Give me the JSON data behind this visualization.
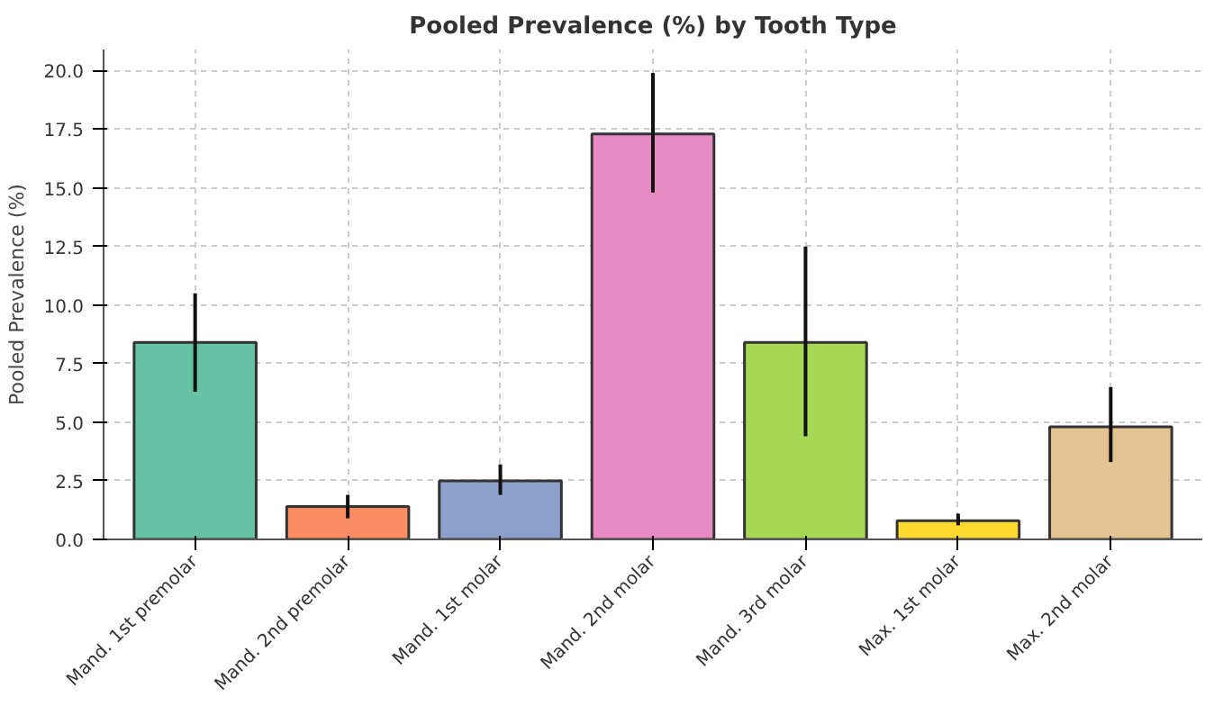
{
  "chart_data": {
    "type": "bar",
    "title": "Pooled Prevalence (%) by Tooth Type",
    "ylabel": "Pooled Prevalence (%)",
    "categories": [
      "Mand. 1st premolar",
      "Mand. 2nd premolar",
      "Mand. 1st molar",
      "Mand. 2nd molar",
      "Mand. 3rd molar",
      "Max. 1st molar",
      "Max. 2nd molar"
    ],
    "values": [
      8.4,
      1.4,
      2.5,
      17.3,
      8.4,
      0.8,
      4.8
    ],
    "errors": [
      [
        6.3,
        10.5
      ],
      [
        0.9,
        1.9
      ],
      [
        1.9,
        3.2
      ],
      [
        14.8,
        19.9
      ],
      [
        4.4,
        12.5
      ],
      [
        0.6,
        1.1
      ],
      [
        3.3,
        6.5
      ]
    ],
    "colors": [
      "#66c2a5",
      "#fc8d62",
      "#8da0cb",
      "#e78ac3",
      "#a6d854",
      "#ffd92f",
      "#e5c494"
    ],
    "ylim": [
      0,
      20.9
    ],
    "yticks": [
      {
        "value": 0,
        "label": "0.0"
      },
      {
        "value": 2.5,
        "label": "2.5"
      },
      {
        "value": 5,
        "label": "5.0"
      },
      {
        "value": 7.5,
        "label": "7.5"
      },
      {
        "value": 10,
        "label": "10.0"
      },
      {
        "value": 12.5,
        "label": "12.5"
      },
      {
        "value": 15,
        "label": "15.0"
      },
      {
        "value": 17.5,
        "label": "17.5"
      },
      {
        "value": 20,
        "label": "20.0"
      }
    ],
    "grid": true
  }
}
